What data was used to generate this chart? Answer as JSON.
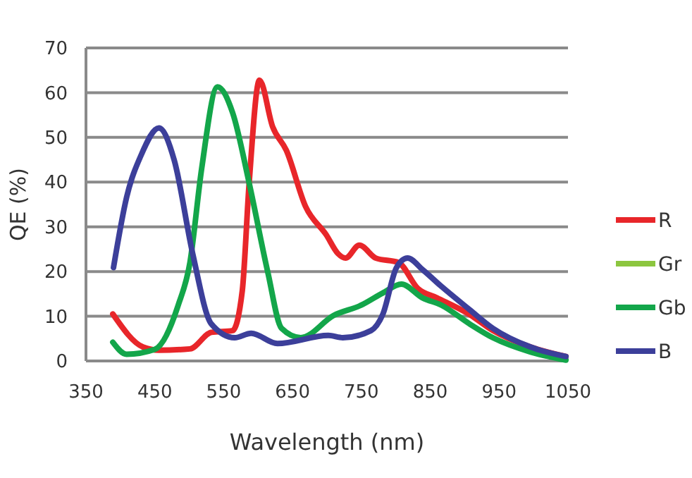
{
  "chart_data": {
    "type": "line",
    "xlabel": "Wavelength (nm)",
    "ylabel": "QE (%)",
    "xlim": [
      350,
      1050
    ],
    "xticks": [
      350,
      450,
      550,
      650,
      750,
      850,
      950,
      1050
    ],
    "ylim": [
      0,
      70
    ],
    "yticks": [
      0,
      10,
      20,
      30,
      40,
      50,
      60,
      70
    ],
    "grid": "y",
    "legend": "right",
    "marker": "none",
    "line_style": "solid",
    "series": [
      {
        "name": "R",
        "color": "#e8262a",
        "x": [
          389,
          433,
          456,
          501,
          532,
          563,
          577,
          587,
          602,
          621,
          641,
          669,
          699,
          716,
          727,
          747,
          771,
          804,
          832,
          860,
          907,
          941,
          996,
          1047
        ],
        "values": [
          10.5,
          3.1,
          2.4,
          2.7,
          6.4,
          6.8,
          15.7,
          39.8,
          62.8,
          52.4,
          47.1,
          34.5,
          28.2,
          24,
          23,
          25.9,
          23,
          22,
          16.2,
          14.1,
          10.4,
          6.8,
          3.1,
          1
        ]
      },
      {
        "name": "Gr",
        "color": "#8cc63f"
      },
      {
        "name": "Gb",
        "color": "#13a64a",
        "x": [
          389,
          409,
          450,
          484,
          501,
          518,
          541,
          563,
          587,
          614,
          634,
          662,
          710,
          750,
          781,
          808,
          839,
          866,
          907,
          941,
          996,
          1047
        ],
        "values": [
          4.2,
          1.5,
          2.6,
          12.5,
          22,
          43,
          61.3,
          55.5,
          39.8,
          19.9,
          7.3,
          5.2,
          10.2,
          12.5,
          15.2,
          17.2,
          14.1,
          12.5,
          8.3,
          5.2,
          2,
          0.2
        ]
      },
      {
        "name": "B",
        "color": "#3c3f9a",
        "x": [
          390,
          409,
          430,
          456,
          478,
          505,
          532,
          566,
          590,
          628,
          702,
          723,
          764,
          781,
          801,
          817,
          839,
          866,
          907,
          941,
          996,
          1047
        ],
        "values": [
          20.9,
          36.6,
          46,
          52.1,
          45,
          24,
          8.3,
          5.2,
          6.2,
          3.9,
          5.7,
          5.2,
          6.8,
          10.4,
          20.9,
          23,
          20.4,
          16.7,
          11.5,
          7.3,
          3.1,
          1
        ]
      }
    ]
  }
}
